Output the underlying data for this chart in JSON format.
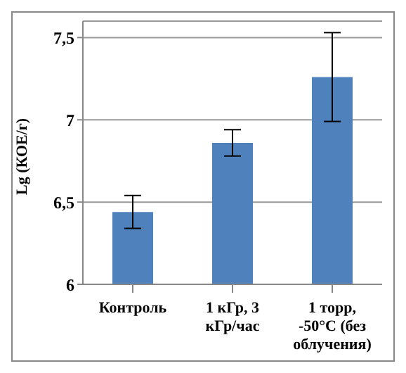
{
  "chart_data": {
    "type": "bar",
    "ylabel": "Lg (КОЕ/г)",
    "categories": [
      "Контроль",
      "1 кГр, 3 кГр/час",
      "1 торр, -50°C (без облучения)"
    ],
    "values": [
      6.44,
      6.86,
      7.26
    ],
    "errors": [
      0.1,
      0.08,
      0.27
    ],
    "color": "#4f81bd",
    "ylim": [
      6,
      7.6
    ],
    "yticks": [
      6,
      {
        "value": 6.5,
        "label": "6,5"
      },
      7,
      {
        "value": 7.5,
        "label": "7,5"
      }
    ],
    "grid": "y",
    "legend": false
  }
}
